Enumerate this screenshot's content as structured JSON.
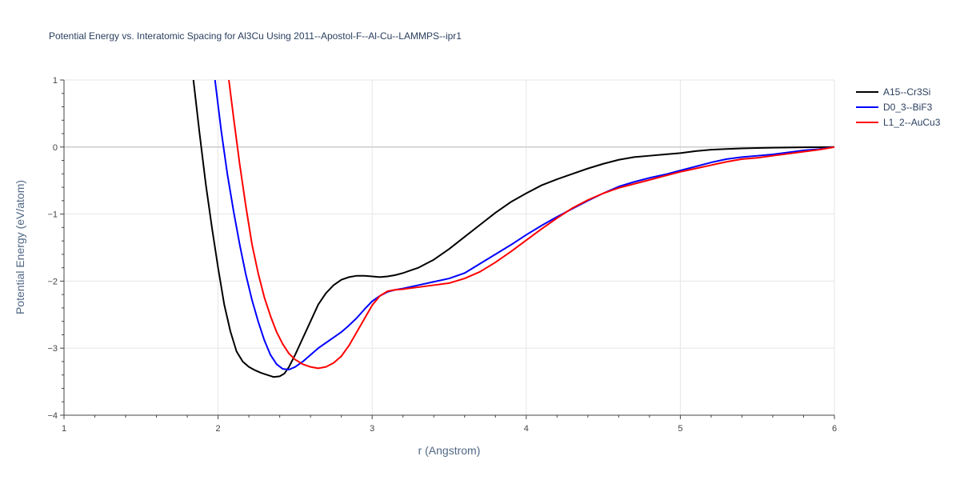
{
  "chart_data": {
    "type": "line",
    "title": "Potential Energy vs. Interatomic Spacing for Al3Cu Using 2011--Apostol-F--Al-Cu--LAMMPS--ipr1",
    "xlabel": "r (Angstrom)",
    "ylabel": "Potential Energy (eV/atom)",
    "xlim": [
      1,
      6
    ],
    "ylim": [
      -4,
      1
    ],
    "xticks": [
      1,
      2,
      3,
      4,
      5,
      6
    ],
    "xtick_labels": [
      "1",
      "2",
      "3",
      "4",
      "5",
      "6"
    ],
    "yticks": [
      1,
      0,
      -1,
      -2,
      -3,
      -4
    ],
    "ytick_labels": [
      "1",
      "0",
      "−1",
      "−2",
      "−3",
      "−4"
    ],
    "grid": true,
    "legend_position": "top-right",
    "series": [
      {
        "name": "A15--Cr3Si",
        "color": "#000000",
        "x": [
          1.84,
          1.88,
          1.92,
          1.96,
          2.0,
          2.04,
          2.08,
          2.12,
          2.16,
          2.2,
          2.24,
          2.28,
          2.32,
          2.36,
          2.4,
          2.43,
          2.46,
          2.5,
          2.55,
          2.6,
          2.65,
          2.7,
          2.75,
          2.8,
          2.85,
          2.9,
          2.95,
          3.0,
          3.05,
          3.1,
          3.15,
          3.2,
          3.25,
          3.3,
          3.4,
          3.5,
          3.6,
          3.7,
          3.8,
          3.9,
          4.0,
          4.1,
          4.2,
          4.3,
          4.4,
          4.5,
          4.6,
          4.7,
          4.8,
          4.9,
          5.0,
          5.1,
          5.2,
          5.3,
          5.4,
          5.5,
          5.6,
          5.7,
          5.8,
          5.9,
          6.0
        ],
        "y": [
          1.0,
          0.2,
          -0.55,
          -1.2,
          -1.8,
          -2.35,
          -2.75,
          -3.05,
          -3.2,
          -3.28,
          -3.33,
          -3.37,
          -3.4,
          -3.43,
          -3.42,
          -3.38,
          -3.28,
          -3.1,
          -2.85,
          -2.6,
          -2.35,
          -2.18,
          -2.06,
          -1.98,
          -1.94,
          -1.92,
          -1.92,
          -1.93,
          -1.94,
          -1.93,
          -1.91,
          -1.88,
          -1.84,
          -1.8,
          -1.68,
          -1.52,
          -1.34,
          -1.16,
          -0.98,
          -0.82,
          -0.69,
          -0.57,
          -0.48,
          -0.4,
          -0.32,
          -0.25,
          -0.19,
          -0.15,
          -0.13,
          -0.11,
          -0.09,
          -0.06,
          -0.04,
          -0.03,
          -0.02,
          -0.015,
          -0.01,
          -0.007,
          -0.004,
          -0.002,
          0.0
        ]
      },
      {
        "name": "D0_3--BiF3",
        "color": "#0000ff",
        "x": [
          1.98,
          2.02,
          2.06,
          2.1,
          2.14,
          2.18,
          2.22,
          2.26,
          2.3,
          2.34,
          2.38,
          2.42,
          2.46,
          2.5,
          2.55,
          2.6,
          2.65,
          2.7,
          2.75,
          2.8,
          2.85,
          2.9,
          2.95,
          3.0,
          3.05,
          3.1,
          3.15,
          3.2,
          3.3,
          3.4,
          3.5,
          3.6,
          3.7,
          3.8,
          3.9,
          4.0,
          4.1,
          4.2,
          4.3,
          4.4,
          4.5,
          4.6,
          4.7,
          4.8,
          4.9,
          5.0,
          5.1,
          5.2,
          5.3,
          5.4,
          5.5,
          5.6,
          5.7,
          5.8,
          5.9,
          6.0
        ],
        "y": [
          1.0,
          0.25,
          -0.4,
          -0.95,
          -1.45,
          -1.9,
          -2.28,
          -2.6,
          -2.88,
          -3.1,
          -3.24,
          -3.31,
          -3.32,
          -3.28,
          -3.2,
          -3.1,
          -3.0,
          -2.92,
          -2.84,
          -2.76,
          -2.66,
          -2.55,
          -2.42,
          -2.3,
          -2.22,
          -2.16,
          -2.13,
          -2.11,
          -2.06,
          -2.01,
          -1.96,
          -1.88,
          -1.74,
          -1.6,
          -1.46,
          -1.31,
          -1.17,
          -1.04,
          -0.92,
          -0.8,
          -0.69,
          -0.59,
          -0.52,
          -0.46,
          -0.41,
          -0.35,
          -0.29,
          -0.23,
          -0.18,
          -0.15,
          -0.13,
          -0.11,
          -0.08,
          -0.05,
          -0.03,
          0.0
        ]
      },
      {
        "name": "L1_2--AuCu3",
        "color": "#ff0000",
        "x": [
          2.07,
          2.1,
          2.14,
          2.18,
          2.22,
          2.26,
          2.3,
          2.34,
          2.38,
          2.42,
          2.46,
          2.5,
          2.55,
          2.6,
          2.65,
          2.7,
          2.75,
          2.8,
          2.85,
          2.9,
          2.95,
          3.0,
          3.05,
          3.1,
          3.15,
          3.2,
          3.3,
          3.4,
          3.5,
          3.6,
          3.7,
          3.8,
          3.9,
          4.0,
          4.1,
          4.2,
          4.3,
          4.4,
          4.5,
          4.6,
          4.7,
          4.8,
          4.9,
          5.0,
          5.1,
          5.2,
          5.3,
          5.4,
          5.5,
          5.6,
          5.7,
          5.8,
          5.9,
          6.0
        ],
        "y": [
          1.0,
          0.45,
          -0.25,
          -0.88,
          -1.45,
          -1.88,
          -2.24,
          -2.52,
          -2.76,
          -2.94,
          -3.08,
          -3.17,
          -3.24,
          -3.28,
          -3.3,
          -3.28,
          -3.22,
          -3.12,
          -2.96,
          -2.76,
          -2.56,
          -2.36,
          -2.22,
          -2.15,
          -2.13,
          -2.12,
          -2.09,
          -2.06,
          -2.03,
          -1.96,
          -1.86,
          -1.72,
          -1.56,
          -1.39,
          -1.22,
          -1.06,
          -0.91,
          -0.79,
          -0.69,
          -0.61,
          -0.55,
          -0.49,
          -0.43,
          -0.37,
          -0.32,
          -0.27,
          -0.22,
          -0.18,
          -0.16,
          -0.13,
          -0.1,
          -0.07,
          -0.04,
          0.0
        ]
      }
    ]
  }
}
